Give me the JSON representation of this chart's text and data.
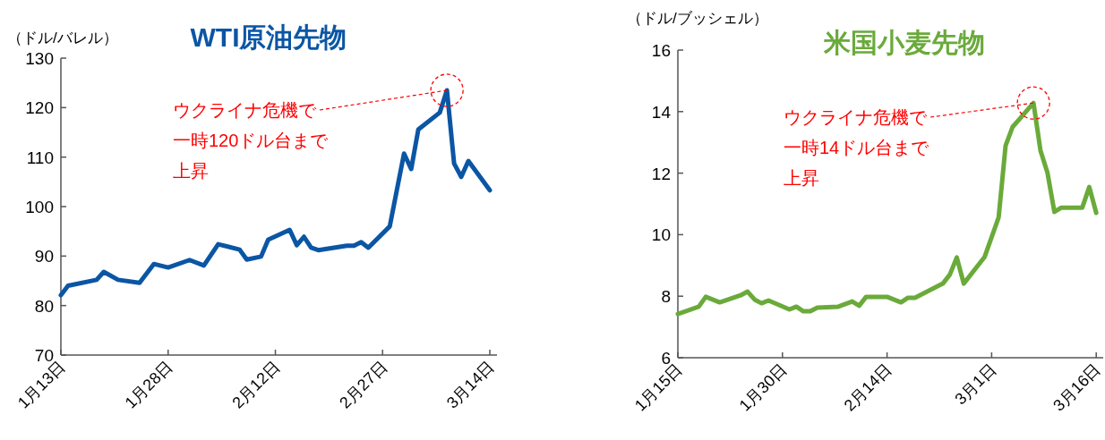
{
  "chart_data": [
    {
      "type": "line",
      "title": "WTI原油先物",
      "ylabel": "（ドル/バレル）",
      "x": [
        "--01-13",
        "--01-14",
        "--01-18",
        "--01-19",
        "--01-21",
        "--01-24",
        "--01-26",
        "--01-28",
        "--01-31",
        "--02-02",
        "--02-04",
        "--02-07",
        "--02-08",
        "--02-10",
        "--02-11",
        "--02-14",
        "--02-15",
        "--02-16",
        "--02-17",
        "--02-18",
        "--02-22",
        "--02-23",
        "--02-24",
        "--02-25",
        "--02-28",
        "--03-01",
        "--03-02",
        "--03-03",
        "--03-04",
        "--03-07",
        "--03-08",
        "--03-09",
        "--03-10",
        "--03-11",
        "--03-14"
      ],
      "series": [
        {
          "color": "#0b56a4",
          "values": [
            82.1,
            84.0,
            85.2,
            86.8,
            85.2,
            84.6,
            88.4,
            87.7,
            89.2,
            88.1,
            92.4,
            91.3,
            89.3,
            89.9,
            93.3,
            95.3,
            92.2,
            93.9,
            91.7,
            91.2,
            92.1,
            92.1,
            92.8,
            91.7,
            96.0,
            103.4,
            110.7,
            107.6,
            115.6,
            119.0,
            123.5,
            108.7,
            106.0,
            109.2,
            103.3
          ]
        }
      ],
      "xlim": [
        "--01-13",
        "--03-15"
      ],
      "ylim": [
        70,
        130
      ],
      "yticks": [
        70,
        80,
        90,
        100,
        110,
        120,
        130
      ],
      "xticks": [
        {
          "value": "--01-13",
          "label": "1月13日"
        },
        {
          "value": "--01-28",
          "label": "1月28日"
        },
        {
          "value": "--02-12",
          "label": "2月12日"
        },
        {
          "value": "--02-27",
          "label": "2月27日"
        },
        {
          "value": "--03-14",
          "label": "3月14日"
        }
      ],
      "annotations": [
        {
          "text": "ウクライナ危機で一時120ドル台まで上昇",
          "x": "--03-08",
          "y": 123.5
        }
      ]
    },
    {
      "type": "line",
      "title": "米国小麦先物",
      "ylabel": "（ドル/ブッシェル）",
      "x": [
        "--01-15",
        "--01-18",
        "--01-19",
        "--01-21",
        "--01-24",
        "--01-25",
        "--01-26",
        "--01-27",
        "--01-28",
        "--01-31",
        "--02-01",
        "--02-02",
        "--02-03",
        "--02-04",
        "--02-07",
        "--02-09",
        "--02-10",
        "--02-11",
        "--02-14",
        "--02-16",
        "--02-17",
        "--02-18",
        "--02-22",
        "--02-23",
        "--02-24",
        "--02-25",
        "--02-28",
        "--03-02",
        "--03-03",
        "--03-04",
        "--03-05",
        "--03-07",
        "--03-08",
        "--03-09",
        "--03-10",
        "--03-11",
        "--03-14",
        "--03-15",
        "--03-16"
      ],
      "series": [
        {
          "color": "#6aaa3a",
          "values": [
            7.42,
            7.66,
            7.98,
            7.8,
            8.03,
            8.15,
            7.89,
            7.77,
            7.86,
            7.57,
            7.66,
            7.51,
            7.51,
            7.63,
            7.66,
            7.83,
            7.69,
            7.98,
            7.98,
            7.8,
            7.95,
            7.95,
            8.41,
            8.7,
            9.26,
            8.41,
            9.28,
            10.56,
            12.89,
            13.5,
            13.76,
            14.28,
            12.74,
            12.02,
            10.74,
            10.88,
            10.88,
            11.55,
            10.71
          ]
        }
      ],
      "xlim": [
        "--01-15",
        "--03-17"
      ],
      "ylim": [
        6,
        16
      ],
      "yticks": [
        6,
        8,
        10,
        12,
        14,
        16
      ],
      "xticks": [
        {
          "value": "--01-15",
          "label": "1月15日"
        },
        {
          "value": "--01-30",
          "label": "1月30日"
        },
        {
          "value": "--02-14",
          "label": "2月14日"
        },
        {
          "value": "--03-01",
          "label": "3月1日"
        },
        {
          "value": "--03-16",
          "label": "3月16日"
        }
      ],
      "annotations": [
        {
          "text": "ウクライナ危機で一時14ドル台まで上昇",
          "x": "--03-07",
          "y": 14.28
        }
      ]
    }
  ]
}
